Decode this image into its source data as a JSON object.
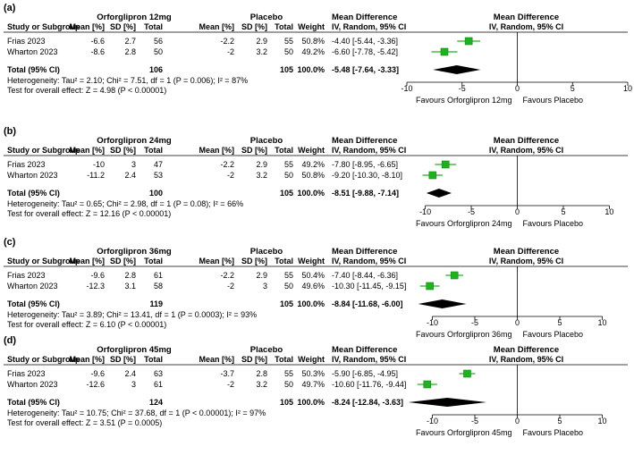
{
  "columns": {
    "study": "Study or Subgroup",
    "mean": "Mean [%]",
    "sd": "SD [%]",
    "total": "Total",
    "weight": "Weight",
    "effect_top": "Mean Difference",
    "effect_sub": "IV, Random, 95% CI"
  },
  "control_label": "Placebo",
  "chart_data": [
    {
      "type": "forest",
      "panel": "(a)",
      "treatment_label": "Orforglipron 12mg",
      "studies": [
        {
          "name": "Frias 2023",
          "t_mean": "-6.6",
          "t_sd": "2.7",
          "t_total": "56",
          "c_mean": "-2.2",
          "c_sd": "2.9",
          "c_total": "55",
          "weight": "50.8%",
          "ci_text": "-4.40 [-5.44, -3.36]",
          "md": -4.4,
          "lo": -5.44,
          "hi": -3.36
        },
        {
          "name": "Wharton 2023",
          "t_mean": "-8.6",
          "t_sd": "2.8",
          "t_total": "50",
          "c_mean": "-2",
          "c_sd": "3.2",
          "c_total": "50",
          "weight": "49.2%",
          "ci_text": "-6.60 [-7.78, -5.42]",
          "md": -6.6,
          "lo": -7.78,
          "hi": -5.42
        }
      ],
      "total": {
        "label": "Total (95% CI)",
        "t_total": "106",
        "c_total": "105",
        "weight": "100.0%",
        "ci_text": "-5.48 [-7.64, -3.33]",
        "md": -5.48,
        "lo": -7.64,
        "hi": -3.33
      },
      "heterogeneity": "Heterogeneity: Tau² = 2.10; Chi² = 7.51, df = 1 (P = 0.006); I² = 87%",
      "overall": "Test for overall effect: Z = 4.98 (P < 0.00001)",
      "xlim": [
        -10,
        10
      ],
      "ticks": [
        -10,
        -5,
        0,
        5,
        10
      ],
      "favours_left": "Favours Orforglipron 12mg",
      "favours_right": "Favours Placebo"
    },
    {
      "type": "forest",
      "panel": "(b)",
      "treatment_label": "Orforglipron 24mg",
      "studies": [
        {
          "name": "Frias 2023",
          "t_mean": "-10",
          "t_sd": "3",
          "t_total": "47",
          "c_mean": "-2.2",
          "c_sd": "2.9",
          "c_total": "55",
          "weight": "49.2%",
          "ci_text": "-7.80 [-8.95, -6.65]",
          "md": -7.8,
          "lo": -8.95,
          "hi": -6.65
        },
        {
          "name": "Wharton 2023",
          "t_mean": "-11.2",
          "t_sd": "2.4",
          "t_total": "53",
          "c_mean": "-2",
          "c_sd": "3.2",
          "c_total": "50",
          "weight": "50.8%",
          "ci_text": "-9.20 [-10.30, -8.10]",
          "md": -9.2,
          "lo": -10.3,
          "hi": -8.1
        }
      ],
      "total": {
        "label": "Total (95% CI)",
        "t_total": "100",
        "c_total": "105",
        "weight": "100.0%",
        "ci_text": "-8.51 [-9.88, -7.14]",
        "md": -8.51,
        "lo": -9.88,
        "hi": -7.14
      },
      "heterogeneity": "Heterogeneity: Tau² = 0.65; Chi² = 2.98, df = 1 (P = 0.08); I² = 66%",
      "overall": "Test for overall effect: Z = 12.16 (P < 0.00001)",
      "xlim": [
        -12,
        12
      ],
      "ticks": [
        -10,
        -5,
        0,
        5,
        10
      ],
      "favours_left": "Favours Orforglipron 24mg",
      "favours_right": "Favours Placebo"
    },
    {
      "type": "forest",
      "panel": "(c)",
      "treatment_label": "Orforglipron 36mg",
      "studies": [
        {
          "name": "Frias 2023",
          "t_mean": "-9.6",
          "t_sd": "2.8",
          "t_total": "61",
          "c_mean": "-2.2",
          "c_sd": "2.9",
          "c_total": "55",
          "weight": "50.4%",
          "ci_text": "-7.40 [-8.44, -6.36]",
          "md": -7.4,
          "lo": -8.44,
          "hi": -6.36
        },
        {
          "name": "Wharton 2023",
          "t_mean": "-12.3",
          "t_sd": "3.1",
          "t_total": "58",
          "c_mean": "-2",
          "c_sd": "3",
          "c_total": "50",
          "weight": "49.6%",
          "ci_text": "-10.30 [-11.45, -9.15]",
          "md": -10.3,
          "lo": -11.45,
          "hi": -9.15
        }
      ],
      "total": {
        "label": "Total (95% CI)",
        "t_total": "119",
        "c_total": "105",
        "weight": "100.0%",
        "ci_text": "-8.84 [-11.68, -6.00]",
        "md": -8.84,
        "lo": -11.68,
        "hi": -6.0
      },
      "heterogeneity": "Heterogeneity: Tau² = 3.89; Chi² = 13.41, df = 1 (P = 0.0003); I² = 93%",
      "overall": "Test for overall effect: Z = 6.10 (P < 0.00001)",
      "xlim": [
        -13,
        13
      ],
      "ticks": [
        -10,
        -5,
        0,
        5,
        10
      ],
      "favours_left": "Favours Orforglipron 36mg",
      "favours_right": "Favours Placebo"
    },
    {
      "type": "forest",
      "panel": "(d)",
      "treatment_label": "Orforglipron 45mg",
      "studies": [
        {
          "name": "Frias 2023",
          "t_mean": "-9.6",
          "t_sd": "2.4",
          "t_total": "63",
          "c_mean": "-3.7",
          "c_sd": "2.8",
          "c_total": "55",
          "weight": "50.3%",
          "ci_text": "-5.90 [-6.85, -4.95]",
          "md": -5.9,
          "lo": -6.85,
          "hi": -4.95
        },
        {
          "name": "Wharton 2023",
          "t_mean": "-12.6",
          "t_sd": "3",
          "t_total": "61",
          "c_mean": "-2",
          "c_sd": "3.2",
          "c_total": "50",
          "weight": "49.7%",
          "ci_text": "-10.60 [-11.76, -9.44]",
          "md": -10.6,
          "lo": -11.76,
          "hi": -9.44
        }
      ],
      "total": {
        "label": "Total (95% CI)",
        "t_total": "124",
        "c_total": "105",
        "weight": "100.0%",
        "ci_text": "-8.24 [-12.84, -3.63]",
        "md": -8.24,
        "lo": -12.84,
        "hi": -3.63
      },
      "heterogeneity": "Heterogeneity: Tau² = 10.75; Chi² = 37.68, df = 1 (P < 0.00001); I² = 97%",
      "overall": "Test for overall effect: Z = 3.51 (P = 0.0005)",
      "xlim": [
        -13,
        13
      ],
      "ticks": [
        -10,
        -5,
        0,
        5,
        10
      ],
      "favours_left": "Favours Orforglipron 45mg",
      "favours_right": "Favours Placebo"
    }
  ],
  "colors": {
    "square": "#20b020",
    "square_edge": "#138a13",
    "diamond": "#000000",
    "line": "#000000"
  }
}
